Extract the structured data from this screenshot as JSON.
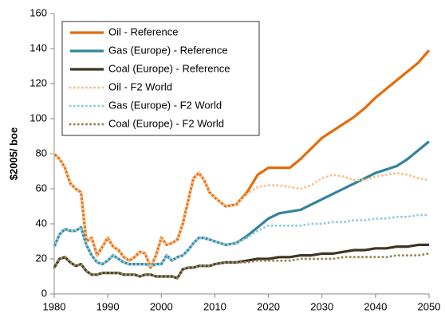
{
  "chart_data": {
    "type": "line",
    "y_label": "$2005/ boe",
    "x": [
      1980,
      1981,
      1982,
      1983,
      1984,
      1985,
      1986,
      1987,
      1988,
      1989,
      1990,
      1991,
      1992,
      1993,
      1994,
      1995,
      1996,
      1997,
      1998,
      1999,
      2000,
      2001,
      2002,
      2003,
      2004,
      2005,
      2006,
      2007,
      2008,
      2009,
      2010,
      2012,
      2014,
      2016,
      2018,
      2020,
      2022,
      2024,
      2026,
      2028,
      2030,
      2032,
      2034,
      2036,
      2038,
      2040,
      2042,
      2044,
      2046,
      2048,
      2050
    ],
    "xlim": [
      1980,
      2050
    ],
    "xticks": [
      1980,
      1990,
      2000,
      2010,
      2020,
      2030,
      2040,
      2050
    ],
    "ylim": [
      0,
      160
    ],
    "yticks": [
      0,
      20,
      40,
      60,
      80,
      100,
      120,
      140,
      160
    ],
    "legend": "upper left",
    "series": [
      {
        "name": "Oil - Reference",
        "color": "#e46c0a",
        "style": "solid",
        "values": [
          80,
          77,
          72,
          63,
          60,
          58,
          30,
          32,
          22,
          27,
          32,
          27,
          25,
          21,
          19,
          21,
          24,
          23,
          15,
          22,
          32,
          28,
          29,
          31,
          40,
          53,
          66,
          69,
          65,
          58,
          55,
          50,
          51,
          58,
          68,
          72,
          72,
          72,
          77,
          83,
          89,
          93,
          97,
          101,
          106,
          112,
          117,
          122,
          127,
          132,
          139
        ]
      },
      {
        "name": "Gas (Europe) - Reference",
        "color": "#31849b",
        "style": "solid",
        "values": [
          27,
          34,
          37,
          36,
          36,
          38,
          28,
          22,
          18,
          17,
          19,
          22,
          20,
          18,
          17,
          17,
          17,
          17,
          16,
          17,
          17,
          22,
          19,
          21,
          22,
          25,
          29,
          32,
          32,
          31,
          30,
          28,
          29,
          33,
          38,
          43,
          46,
          47,
          48,
          51,
          54,
          57,
          60,
          63,
          66,
          69,
          71,
          73,
          77,
          82,
          87
        ]
      },
      {
        "name": "Coal (Europe) - Reference",
        "color": "#3f3424",
        "style": "solid",
        "values": [
          15,
          20,
          21,
          18,
          16,
          17,
          13,
          11,
          11,
          12,
          12,
          12,
          12,
          11,
          11,
          11,
          10,
          11,
          11,
          10,
          10,
          10,
          10,
          9,
          14,
          15,
          15,
          16,
          16,
          16,
          17,
          18,
          18,
          19,
          20,
          20,
          21,
          21,
          22,
          22,
          23,
          23,
          24,
          25,
          25,
          26,
          26,
          27,
          27,
          28,
          28
        ]
      },
      {
        "name": "Oil - F2 World",
        "color": "#fac090",
        "style": "dotted",
        "values": [
          80,
          77,
          72,
          63,
          60,
          58,
          30,
          32,
          22,
          27,
          32,
          27,
          25,
          21,
          19,
          21,
          24,
          23,
          15,
          22,
          32,
          28,
          29,
          31,
          40,
          53,
          66,
          69,
          65,
          58,
          55,
          50,
          51,
          57,
          61,
          62,
          62,
          61,
          60,
          62,
          66,
          68,
          67,
          65,
          65,
          67,
          68,
          69,
          68,
          66,
          65
        ]
      },
      {
        "name": "Gas (Europe) - F2 World",
        "color": "#93cddd",
        "style": "dotted",
        "values": [
          27,
          34,
          37,
          36,
          36,
          38,
          28,
          22,
          18,
          17,
          19,
          22,
          20,
          18,
          17,
          17,
          17,
          17,
          16,
          17,
          17,
          22,
          19,
          21,
          22,
          25,
          29,
          32,
          32,
          31,
          30,
          28,
          29,
          32,
          36,
          39,
          39,
          39,
          39,
          40,
          40,
          41,
          41,
          42,
          42,
          43,
          43,
          44,
          44,
          45,
          45
        ]
      },
      {
        "name": "Coal (Europe) - F2 World",
        "color": "#948a54",
        "style": "dotted",
        "values": [
          15,
          20,
          21,
          18,
          16,
          17,
          13,
          11,
          11,
          12,
          12,
          12,
          12,
          11,
          11,
          11,
          10,
          11,
          11,
          10,
          10,
          10,
          10,
          9,
          14,
          15,
          15,
          16,
          16,
          16,
          17,
          18,
          18,
          18,
          19,
          19,
          19,
          19,
          20,
          20,
          20,
          20,
          21,
          21,
          21,
          21,
          21,
          22,
          22,
          22,
          23
        ]
      }
    ]
  }
}
